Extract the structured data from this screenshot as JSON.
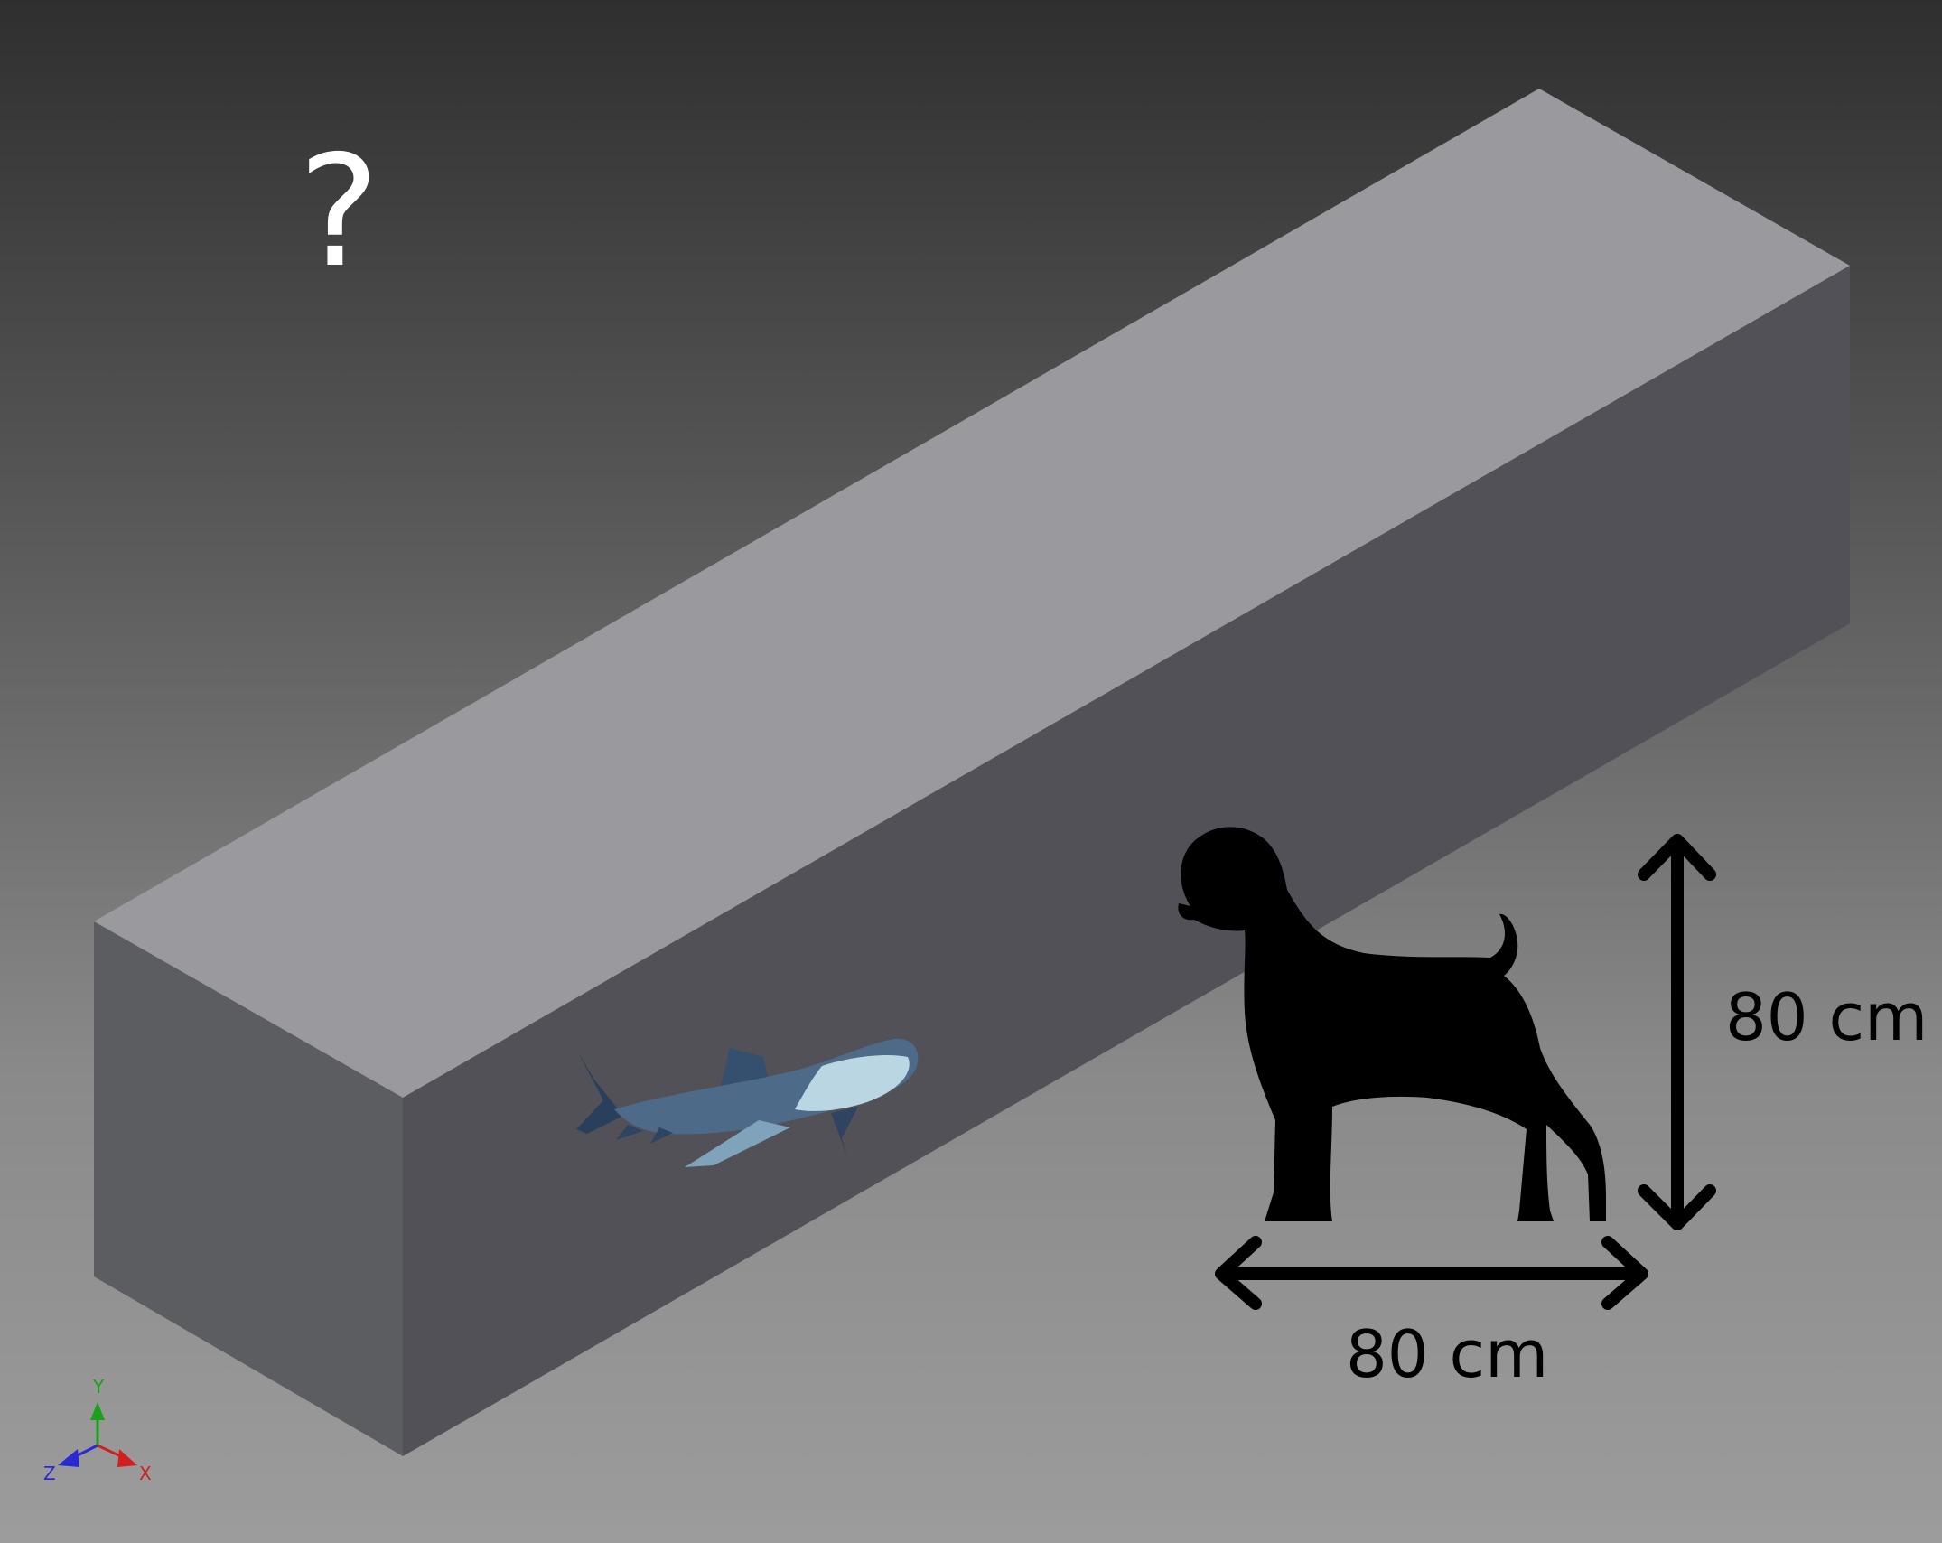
{
  "question_mark": "?",
  "height_label": "80 cm",
  "width_label": "80 cm",
  "axis_labels": {
    "x": "X",
    "y": "Y",
    "z": "Z"
  },
  "colors": {
    "box_top": "#9a999e",
    "box_front": "#525158",
    "box_left": "#5b5d61",
    "silhouette": "#000000",
    "axis_x": "#d22020",
    "axis_y": "#1aa01a",
    "axis_z": "#2a2ad0"
  },
  "icons": [
    "shark-icon",
    "dog-silhouette-icon",
    "axis-triad-icon"
  ]
}
